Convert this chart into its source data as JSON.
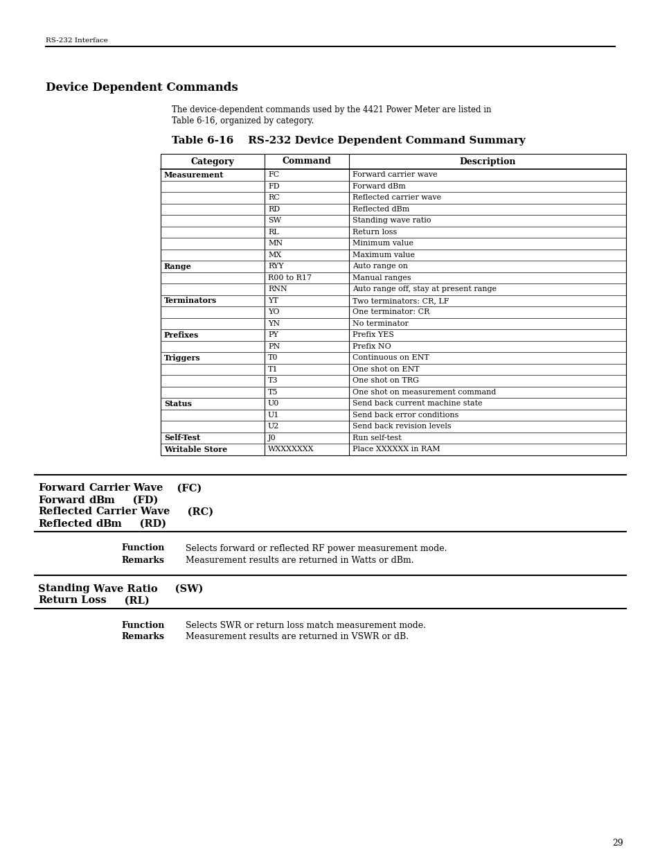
{
  "page_header": "RS-232 Interface",
  "section_title": "Device Dependent Commands",
  "intro_line1": "The device-dependent commands used by the 4421 Power Meter are listed in",
  "intro_line2": "Table 6-16, organized by category.",
  "table_title": "Table 6-16    RS-232 Device Dependent Command Summary",
  "table_headers": [
    "Category",
    "Command",
    "Description"
  ],
  "table_rows": [
    [
      "Measurement",
      "FC",
      "Forward carrier wave"
    ],
    [
      "",
      "FD",
      "Forward dBm"
    ],
    [
      "",
      "RC",
      "Reflected carrier wave"
    ],
    [
      "",
      "RD",
      "Reflected dBm"
    ],
    [
      "",
      "SW",
      "Standing wave ratio"
    ],
    [
      "",
      "RL",
      "Return loss"
    ],
    [
      "",
      "MN",
      "Minimum value"
    ],
    [
      "",
      "MX",
      "Maximum value"
    ],
    [
      "Range",
      "RYY",
      "Auto range on"
    ],
    [
      "",
      "R00 to R17",
      "Manual ranges"
    ],
    [
      "",
      "RNN",
      "Auto range off, stay at present range"
    ],
    [
      "Terminators",
      "YT",
      "Two terminators: CR, LF"
    ],
    [
      "",
      "YO",
      "One terminator: CR"
    ],
    [
      "",
      "YN",
      "No terminator"
    ],
    [
      "Prefixes",
      "PY",
      "Prefix YES"
    ],
    [
      "",
      "PN",
      "Prefix NO"
    ],
    [
      "Triggers",
      "T0",
      "Continuous on ENT"
    ],
    [
      "",
      "T1",
      "One shot on ENT"
    ],
    [
      "",
      "T3",
      "One shot on TRG"
    ],
    [
      "",
      "T5",
      "One shot on measurement command"
    ],
    [
      "Status",
      "U0",
      "Send back current machine state"
    ],
    [
      "",
      "U1",
      "Send back error conditions"
    ],
    [
      "",
      "U2",
      "Send back revision levels"
    ],
    [
      "Self-Test",
      "J0",
      "Run self-test"
    ],
    [
      "Writable Store",
      "WXXXXXXX",
      "Place XXXXXX in RAM"
    ]
  ],
  "bold_categories": [
    "Measurement",
    "Range",
    "Terminators",
    "Prefixes",
    "Triggers",
    "Status",
    "Self-Test",
    "Writable Store"
  ],
  "block1_lines": [
    [
      "F",
      "orward ",
      "C",
      "arrier Wave",
      "    (FC)"
    ],
    [
      "F",
      "orward ",
      "d",
      "Bm",
      "     (FD)"
    ],
    [
      "R",
      "eflected ",
      "C",
      "arrier Wave",
      "     (RC)"
    ],
    [
      "R",
      "eflected ",
      "d",
      "Bm",
      "     (RD)"
    ]
  ],
  "block1_function": "Selects forward or reflected RF power measurement mode.",
  "block1_remarks": "Measurement results are returned in Watts or dBm.",
  "block2_lines": [
    [
      "S",
      "tanding ",
      "W",
      "ave Ratio",
      "     (SW)"
    ],
    [
      "R",
      "eturn Loss",
      "",
      "",
      "     (RL)"
    ]
  ],
  "block2_function": "Selects SWR or return loss match measurement mode.",
  "block2_remarks": "Measurement results are returned in VSWR or dB.",
  "page_number": "29",
  "bg_color": "#ffffff",
  "text_color": "#000000"
}
